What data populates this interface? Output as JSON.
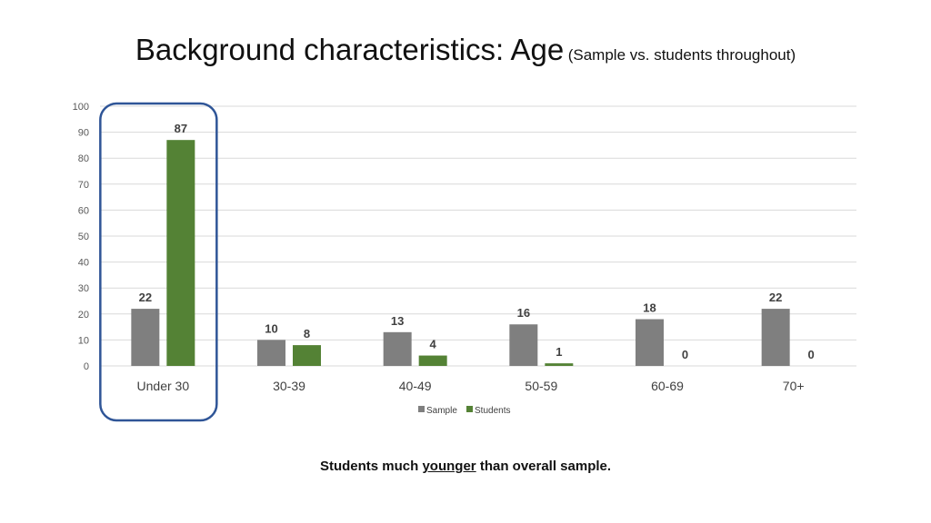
{
  "title": {
    "main": "Background characteristics: Age",
    "sub": "(Sample vs. students throughout)"
  },
  "caption": {
    "before": "Students much ",
    "emphasis": "younger",
    "after": " than overall sample."
  },
  "colors": {
    "sample": "#7f7f7f",
    "students": "#548235",
    "highlight_box": "#2f5597",
    "grid": "#d9d9d9"
  },
  "chart_data": {
    "type": "bar",
    "categories": [
      "Under 30",
      "30-39",
      "40-49",
      "50-59",
      "60-69",
      "70+"
    ],
    "series": [
      {
        "name": "Sample",
        "values": [
          22,
          10,
          13,
          16,
          18,
          22
        ]
      },
      {
        "name": "Students",
        "values": [
          87,
          8,
          4,
          1,
          0,
          0
        ]
      }
    ],
    "ylim": [
      0,
      100
    ],
    "yticks": [
      0,
      10,
      20,
      30,
      40,
      50,
      60,
      70,
      80,
      90,
      100
    ],
    "grid": true,
    "legend_position": "bottom",
    "highlighted_category": "Under 30"
  }
}
